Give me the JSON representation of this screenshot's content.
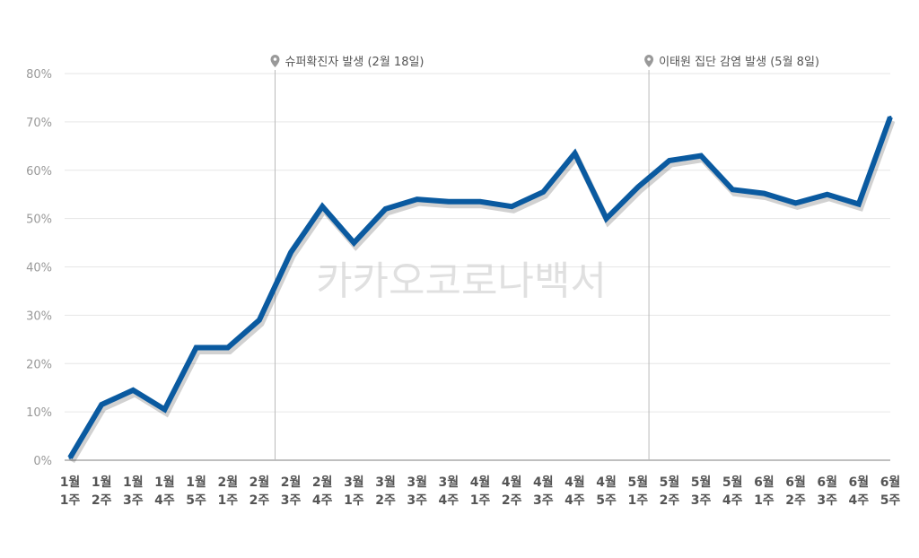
{
  "chart_data": {
    "type": "line",
    "title": "",
    "xlabel": "",
    "ylabel": "",
    "ylim": [
      0,
      80
    ],
    "y_ticks": [
      "0%",
      "10%",
      "20%",
      "30%",
      "40%",
      "50%",
      "60%",
      "70%",
      "80%"
    ],
    "grid": true,
    "categories": [
      [
        "1월",
        "1주"
      ],
      [
        "1월",
        "2주"
      ],
      [
        "1월",
        "3주"
      ],
      [
        "1월",
        "4주"
      ],
      [
        "1월",
        "5주"
      ],
      [
        "2월",
        "1주"
      ],
      [
        "2월",
        "2주"
      ],
      [
        "2월",
        "3주"
      ],
      [
        "2월",
        "4주"
      ],
      [
        "3월",
        "1주"
      ],
      [
        "3월",
        "2주"
      ],
      [
        "3월",
        "3주"
      ],
      [
        "3월",
        "4주"
      ],
      [
        "4월",
        "1주"
      ],
      [
        "4월",
        "2주"
      ],
      [
        "4월",
        "3주"
      ],
      [
        "4월",
        "4주"
      ],
      [
        "4월",
        "5주"
      ],
      [
        "5월",
        "1주"
      ],
      [
        "5월",
        "2주"
      ],
      [
        "5월",
        "3주"
      ],
      [
        "5월",
        "4주"
      ],
      [
        "6월",
        "1주"
      ],
      [
        "6월",
        "2주"
      ],
      [
        "6월",
        "3주"
      ],
      [
        "6월",
        "4주"
      ],
      [
        "6월",
        "5주"
      ]
    ],
    "series": [
      {
        "color": "#0a5aa0",
        "values": [
          0.5,
          11.5,
          14.5,
          10.5,
          23.3,
          23.3,
          29,
          43,
          52.5,
          45,
          52,
          54,
          53.5,
          53.5,
          52.5,
          55.5,
          63.5,
          50,
          56.5,
          62,
          63,
          56,
          55.2,
          53.2,
          55,
          53,
          71
        ]
      }
    ],
    "annotations": [
      {
        "label": "슈퍼확진자 발생 (2월 18일)",
        "after_index": 6.5
      },
      {
        "label": "이태원 집단 감염 발생 (5월 8일)",
        "after_index": 18.35
      }
    ],
    "watermark": "카카오코로나백서"
  }
}
